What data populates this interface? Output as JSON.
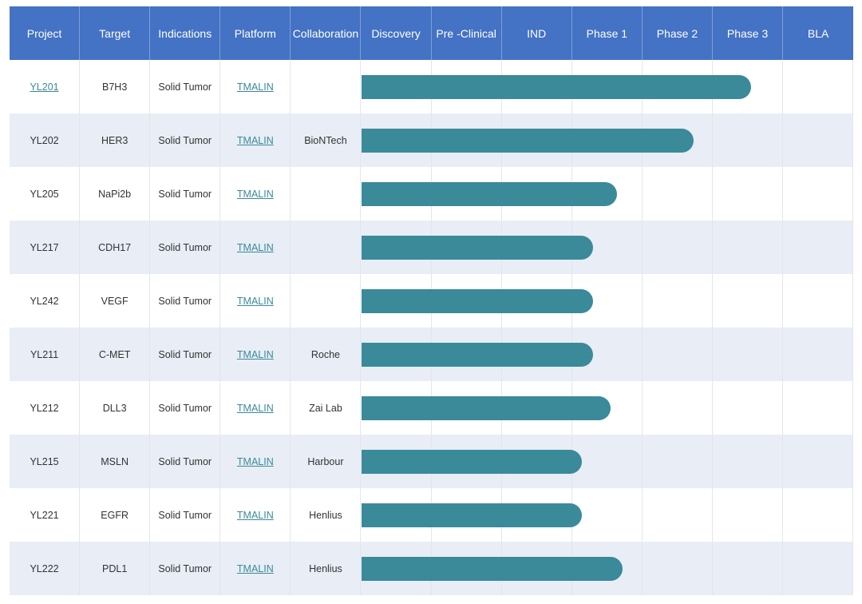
{
  "table": {
    "headers": [
      "Project",
      "Target",
      "Indications",
      "Platform",
      "Collaboration",
      "Discovery",
      "Pre -Clinical",
      "IND",
      "Phase 1",
      "Phase 2",
      "Phase 3",
      "BLA"
    ]
  },
  "colors": {
    "header": "#4472c4",
    "bar": "#3a8a9a",
    "row_alt": "#e8edf6",
    "link": "#3a8a9a"
  },
  "chart_data": {
    "type": "bar",
    "orientation": "horizontal",
    "stages": [
      "Discovery",
      "Pre -Clinical",
      "IND",
      "Phase 1",
      "Phase 2",
      "Phase 3",
      "BLA"
    ],
    "value_unit": "stage columns completed",
    "rows": [
      {
        "project": "YL201",
        "target": "B7H3",
        "indication": "Solid Tumor",
        "platform": "TMALIN",
        "collaboration": "",
        "progress": 5.55,
        "project_is_link": true
      },
      {
        "project": "YL202",
        "target": "HER3",
        "indication": "Solid Tumor",
        "platform": "TMALIN",
        "collaboration": "BioNTech",
        "progress": 4.73,
        "project_is_link": false
      },
      {
        "project": "YL205",
        "target": "NaPi2b",
        "indication": "Solid Tumor",
        "platform": "TMALIN",
        "collaboration": "",
        "progress": 3.64,
        "project_is_link": false
      },
      {
        "project": "YL217",
        "target": "CDH17",
        "indication": "Solid Tumor",
        "platform": "TMALIN",
        "collaboration": "",
        "progress": 3.3,
        "project_is_link": false
      },
      {
        "project": "YL242",
        "target": "VEGF",
        "indication": "Solid Tumor",
        "platform": "TMALIN",
        "collaboration": "",
        "progress": 3.3,
        "project_is_link": false
      },
      {
        "project": "YL211",
        "target": "C-MET",
        "indication": "Solid Tumor",
        "platform": "TMALIN",
        "collaboration": "Roche",
        "progress": 3.3,
        "project_is_link": false
      },
      {
        "project": "YL212",
        "target": "DLL3",
        "indication": "Solid Tumor",
        "platform": "TMALIN",
        "collaboration": "Zai Lab",
        "progress": 3.55,
        "project_is_link": false
      },
      {
        "project": "YL215",
        "target": "MSLN",
        "indication": "Solid Tumor",
        "platform": "TMALIN",
        "collaboration": "Harbour",
        "progress": 3.14,
        "project_is_link": false
      },
      {
        "project": "YL221",
        "target": "EGFR",
        "indication": "Solid Tumor",
        "platform": "TMALIN",
        "collaboration": "Henlius",
        "progress": 3.14,
        "project_is_link": false
      },
      {
        "project": "YL222",
        "target": "PDL1",
        "indication": "Solid Tumor",
        "platform": "TMALIN",
        "collaboration": "Henlius",
        "progress": 3.72,
        "project_is_link": false
      }
    ]
  }
}
